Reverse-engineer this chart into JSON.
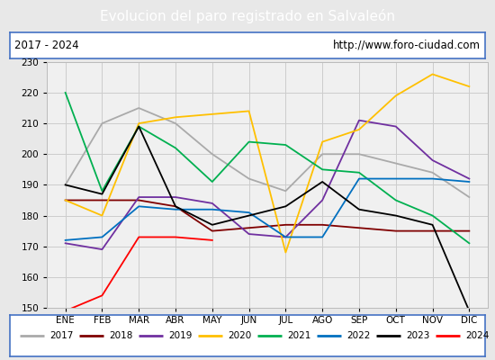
{
  "title": "Evolucion del paro registrado en Salvaleón",
  "subtitle_left": "2017 - 2024",
  "subtitle_right": "http://www.foro-ciudad.com",
  "title_bg": "#4472c4",
  "title_color": "white",
  "months": [
    "ENE",
    "FEB",
    "MAR",
    "ABR",
    "MAY",
    "JUN",
    "JUL",
    "AGO",
    "SEP",
    "OCT",
    "NOV",
    "DIC"
  ],
  "ylim": [
    150,
    230
  ],
  "yticks": [
    150,
    160,
    170,
    180,
    190,
    200,
    210,
    220,
    230
  ],
  "series": {
    "2017": {
      "color": "#aaaaaa",
      "data": [
        190,
        210,
        215,
        210,
        200,
        192,
        188,
        200,
        200,
        197,
        194,
        186
      ]
    },
    "2018": {
      "color": "#800000",
      "data": [
        185,
        185,
        185,
        183,
        175,
        176,
        177,
        177,
        176,
        175,
        175,
        175
      ]
    },
    "2019": {
      "color": "#7030a0",
      "data": [
        171,
        169,
        186,
        186,
        184,
        174,
        173,
        185,
        211,
        209,
        198,
        192
      ]
    },
    "2020": {
      "color": "#ffc000",
      "data": [
        185,
        180,
        210,
        212,
        213,
        214,
        168,
        204,
        208,
        219,
        226,
        222
      ]
    },
    "2021": {
      "color": "#00b050",
      "data": [
        220,
        188,
        209,
        202,
        191,
        204,
        203,
        195,
        194,
        185,
        180,
        171
      ]
    },
    "2022": {
      "color": "#0070c0",
      "data": [
        172,
        173,
        183,
        182,
        182,
        181,
        173,
        173,
        192,
        192,
        192,
        191
      ]
    },
    "2023": {
      "color": "#000000",
      "data": [
        190,
        187,
        209,
        183,
        177,
        180,
        183,
        191,
        182,
        180,
        177,
        149
      ]
    },
    "2024": {
      "color": "#ff0000",
      "data": [
        149,
        154,
        173,
        173,
        172,
        null,
        null,
        null,
        null,
        null,
        null,
        null
      ]
    }
  },
  "background_color": "#e8e8e8",
  "plot_bg": "#f0f0f0",
  "grid_color": "#cccccc",
  "border_color": "#4472c4"
}
